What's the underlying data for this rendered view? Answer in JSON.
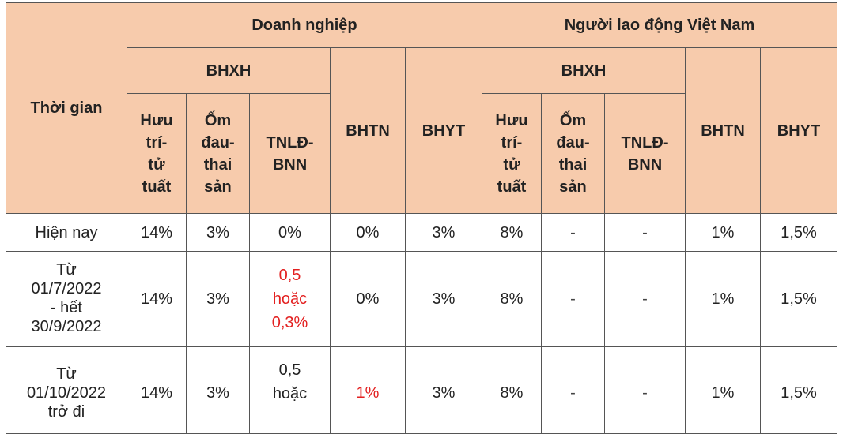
{
  "header": {
    "time": "Thời gian",
    "enterprise": "Doanh nghiệp",
    "worker": "Người lao động Việt Nam",
    "bhxh": "BHXH",
    "bhtn": "BHTN",
    "bhyt": "BHYT",
    "sub": {
      "huu_tri": [
        "Hưu",
        "trí-",
        "tử",
        "tuất"
      ],
      "om_dau": [
        "Ốm",
        "đau-",
        "thai",
        "sản"
      ],
      "tnld": [
        "TNLĐ-",
        "BNN"
      ]
    }
  },
  "rows": [
    {
      "time": [
        "Hiện nay"
      ],
      "dn_huu": "14%",
      "dn_om": "3%",
      "dn_tnld": [
        "0%"
      ],
      "dn_bhtn": "0%",
      "dn_bhyt": "3%",
      "nld_huu": "8%",
      "nld_om": "-",
      "nld_tnld": "-",
      "nld_bhtn": "1%",
      "nld_bhyt": "1,5%"
    },
    {
      "time": [
        "Từ",
        "01/7/2022",
        "- hết",
        "30/9/2022"
      ],
      "dn_huu": "14%",
      "dn_om": "3%",
      "dn_tnld": [
        "0,5",
        "hoặc",
        "0,3%"
      ],
      "dn_bhtn": "0%",
      "dn_bhyt": "3%",
      "nld_huu": "8%",
      "nld_om": "-",
      "nld_tnld": "-",
      "nld_bhtn": "1%",
      "nld_bhyt": "1,5%"
    },
    {
      "time": [
        "Từ",
        "01/10/2022",
        "trở đi"
      ],
      "dn_huu": "14%",
      "dn_om": "3%",
      "dn_tnld": [
        "0,5",
        "hoặc"
      ],
      "dn_bhtn": "1%",
      "dn_bhyt": "3%",
      "nld_huu": "8%",
      "nld_om": "-",
      "nld_tnld": "-",
      "nld_bhtn": "1%",
      "nld_bhyt": "1,5%"
    }
  ],
  "colors": {
    "header_bg": "#f7cbac",
    "highlight": "#e32020"
  }
}
